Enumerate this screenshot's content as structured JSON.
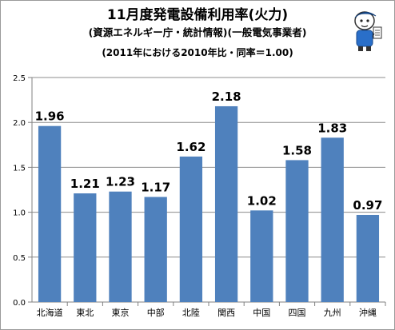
{
  "chart_data": {
    "type": "bar",
    "title": "11月度発電設備利用率(火力)",
    "subtitle": "(資源エネルギー庁・統計情報)(一般電気事業者)",
    "note": "(2011年における2010年比・同率＝1.00)",
    "categories": [
      "北海道",
      "東北",
      "東京",
      "中部",
      "北陸",
      "関西",
      "中国",
      "四国",
      "九州",
      "沖縄"
    ],
    "values": [
      1.96,
      1.21,
      1.23,
      1.17,
      1.62,
      2.18,
      1.02,
      1.58,
      1.83,
      0.97
    ],
    "value_labels": [
      "1.96",
      "1.21",
      "1.23",
      "1.17",
      "1.62",
      "2.18",
      "1.02",
      "1.58",
      "1.83",
      "0.97"
    ],
    "ylim": [
      0,
      2.5
    ],
    "yticks": [
      0.0,
      0.5,
      1.0,
      1.5,
      2.0,
      2.5
    ],
    "ytick_labels": [
      "0.0",
      "0.5",
      "1.0",
      "1.5",
      "2.0",
      "2.5"
    ],
    "grid": true,
    "legend": "none",
    "bar_color": "#4f81bd",
    "grid_color": "#8c8c8c"
  }
}
